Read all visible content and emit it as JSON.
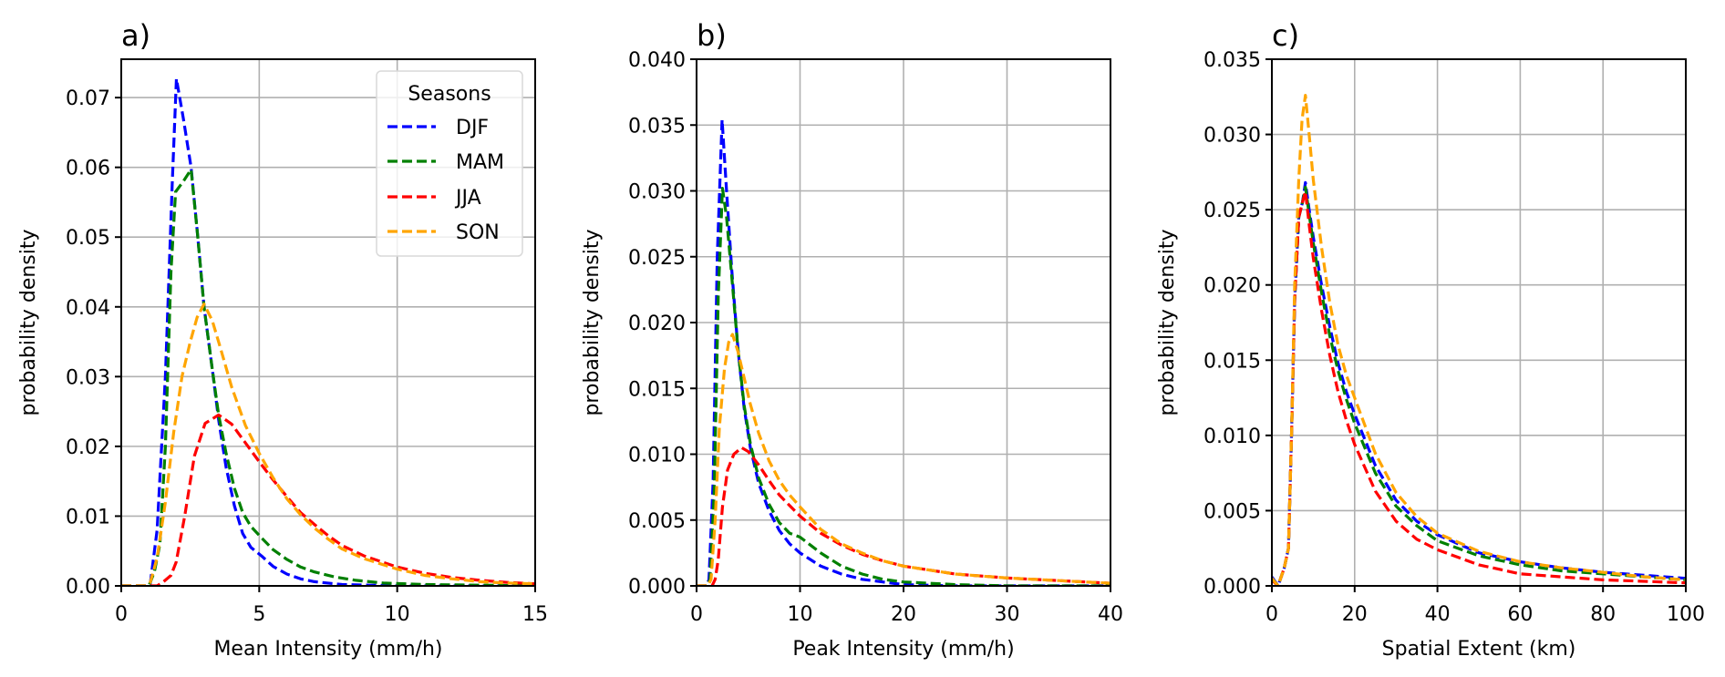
{
  "colors": {
    "DJF": "#0000ff",
    "MAM": "#008000",
    "JJA": "#ff0000",
    "SON": "#ffa500",
    "grid": "#b0b0b0"
  },
  "chart_data": [
    {
      "type": "line",
      "panel": "a)",
      "title": "a)",
      "xlabel": "Mean Intensity (mm/h)",
      "ylabel": "probability density",
      "xlim": [
        0,
        15
      ],
      "ylim": [
        0,
        0.0755
      ],
      "xticks": [
        0,
        5,
        10,
        15
      ],
      "xtick_labels": [
        "0",
        "5",
        "10",
        "15"
      ],
      "yticks": [
        0,
        0.01,
        0.02,
        0.03,
        0.04,
        0.05,
        0.06,
        0.07
      ],
      "ytick_labels": [
        "0.00",
        "0.01",
        "0.02",
        "0.03",
        "0.04",
        "0.05",
        "0.06",
        "0.07"
      ],
      "grid": true,
      "legend": {
        "title": "Seasons",
        "position": "top-right",
        "entries": [
          "DJF",
          "MAM",
          "JJA",
          "SON"
        ]
      },
      "series": [
        {
          "name": "DJF",
          "x": [
            0,
            0.9,
            1.05,
            1.3,
            1.6,
            1.85,
            2.0,
            2.25,
            2.53,
            2.77,
            3.0,
            3.3,
            3.53,
            3.8,
            4.1,
            4.4,
            4.7,
            5.08,
            5.5,
            6.0,
            6.5,
            7.0,
            8.0,
            9.0,
            10.0,
            12.0,
            15.0
          ],
          "y": [
            0,
            0,
            0.0003,
            0.008,
            0.03,
            0.058,
            0.0727,
            0.067,
            0.06,
            0.0502,
            0.04,
            0.031,
            0.0238,
            0.017,
            0.0115,
            0.0075,
            0.0055,
            0.0043,
            0.0028,
            0.0017,
            0.001,
            0.0006,
            0.0002,
            0.0001,
            0.0,
            0.0,
            0.0
          ]
        },
        {
          "name": "MAM",
          "x": [
            0,
            1.0,
            1.2,
            1.4,
            1.6,
            1.8,
            1.97,
            2.25,
            2.53,
            2.77,
            3.0,
            3.3,
            3.53,
            3.8,
            4.1,
            4.4,
            4.7,
            5.08,
            5.5,
            6.0,
            6.5,
            7.0,
            7.7,
            8.5,
            9.5,
            11.0,
            13.0,
            15.0
          ],
          "y": [
            0,
            0,
            0.002,
            0.006,
            0.02,
            0.045,
            0.0565,
            0.058,
            0.0597,
            0.0502,
            0.04,
            0.031,
            0.0245,
            0.019,
            0.014,
            0.0105,
            0.0085,
            0.0069,
            0.0052,
            0.0038,
            0.0027,
            0.002,
            0.0013,
            0.0008,
            0.0004,
            0.0002,
            0.0001,
            0.0
          ]
        },
        {
          "name": "JJA",
          "x": [
            0,
            1.3,
            1.5,
            1.8,
            1.99,
            2.3,
            2.65,
            3.04,
            3.53,
            4.0,
            4.5,
            5.0,
            5.5,
            6.0,
            6.5,
            7.0,
            7.5,
            8.0,
            8.8,
            10.0,
            11.0,
            12.0,
            13.0,
            14.0,
            15.0
          ],
          "y": [
            0,
            0,
            0.0005,
            0.0015,
            0.0034,
            0.01,
            0.0186,
            0.0233,
            0.0245,
            0.0232,
            0.0205,
            0.0178,
            0.0152,
            0.0128,
            0.0105,
            0.0088,
            0.0072,
            0.0058,
            0.0043,
            0.0027,
            0.0018,
            0.0012,
            0.0008,
            0.0005,
            0.0003
          ]
        },
        {
          "name": "SON",
          "x": [
            0,
            0.9,
            1.05,
            1.3,
            1.6,
            1.9,
            2.2,
            2.5,
            2.75,
            3.0,
            3.3,
            3.6,
            4.0,
            4.5,
            5.0,
            5.5,
            6.0,
            6.5,
            7.0,
            7.5,
            8.0,
            8.8,
            10.0,
            11.0,
            12.0,
            13.0,
            14.0,
            15.0
          ],
          "y": [
            0,
            0,
            0.0005,
            0.004,
            0.012,
            0.022,
            0.03,
            0.035,
            0.0385,
            0.0404,
            0.038,
            0.034,
            0.0285,
            0.023,
            0.019,
            0.0155,
            0.0125,
            0.0102,
            0.0083,
            0.0067,
            0.0053,
            0.0039,
            0.0024,
            0.0015,
            0.001,
            0.0006,
            0.0004,
            0.0003
          ]
        }
      ]
    },
    {
      "type": "line",
      "panel": "b)",
      "title": "b)",
      "xlabel": "Peak Intensity (mm/h)",
      "ylabel": "probability density",
      "xlim": [
        0,
        40
      ],
      "ylim": [
        0,
        0.04
      ],
      "xticks": [
        0,
        10,
        20,
        30,
        40
      ],
      "xtick_labels": [
        "0",
        "10",
        "20",
        "30",
        "40"
      ],
      "yticks": [
        0,
        0.005,
        0.01,
        0.015,
        0.02,
        0.025,
        0.03,
        0.035,
        0.04
      ],
      "ytick_labels": [
        "0.000",
        "0.005",
        "0.010",
        "0.015",
        "0.020",
        "0.025",
        "0.030",
        "0.035",
        "0.040"
      ],
      "grid": true,
      "series": [
        {
          "name": "DJF",
          "x": [
            0,
            1.0,
            1.2,
            1.6,
            2.0,
            2.47,
            2.9,
            3.4,
            4.0,
            4.6,
            5.2,
            6.0,
            7.0,
            8.0,
            9.0,
            10.0,
            12.0,
            14.0,
            16.0,
            18.0,
            20.0,
            25.0,
            30.0,
            40.0
          ],
          "y": [
            0,
            0,
            0.0005,
            0.008,
            0.025,
            0.0354,
            0.03,
            0.024,
            0.018,
            0.0135,
            0.0105,
            0.0078,
            0.0057,
            0.0042,
            0.0032,
            0.0025,
            0.0015,
            0.0009,
            0.0005,
            0.0003,
            0.0001,
            0.0,
            0.0,
            0.0
          ]
        },
        {
          "name": "MAM",
          "x": [
            0,
            1.0,
            1.3,
            1.7,
            2.1,
            2.5,
            2.9,
            3.4,
            4.0,
            4.6,
            5.2,
            6.0,
            7.0,
            8.0,
            9.0,
            10.0,
            12.0,
            14.0,
            16.0,
            18.0,
            20.0,
            25.0,
            30.0,
            40.0
          ],
          "y": [
            0,
            0,
            0.0005,
            0.007,
            0.022,
            0.0302,
            0.028,
            0.0235,
            0.018,
            0.0137,
            0.0108,
            0.0082,
            0.0062,
            0.0048,
            0.004,
            0.0037,
            0.0025,
            0.0015,
            0.0009,
            0.0005,
            0.0003,
            0.0001,
            0.0,
            0.0
          ]
        },
        {
          "name": "JJA",
          "x": [
            0,
            1.5,
            1.8,
            2.1,
            2.5,
            3.0,
            3.6,
            4.35,
            5.0,
            6.0,
            7.0,
            8.0,
            9.0,
            10.0,
            12.0,
            14.0,
            16.0,
            18.0,
            20.0,
            25.0,
            30.0,
            35.0,
            40.0
          ],
          "y": [
            0,
            0,
            0.0005,
            0.002,
            0.006,
            0.0088,
            0.01,
            0.0105,
            0.0102,
            0.0092,
            0.008,
            0.0069,
            0.0061,
            0.0053,
            0.004,
            0.0031,
            0.0024,
            0.0019,
            0.0015,
            0.0009,
            0.0006,
            0.0004,
            0.0002
          ]
        },
        {
          "name": "SON",
          "x": [
            0,
            1.1,
            1.4,
            1.8,
            2.2,
            2.7,
            3.1,
            3.47,
            4.0,
            4.6,
            5.2,
            6.0,
            7.0,
            8.0,
            9.0,
            10.0,
            12.0,
            14.0,
            16.0,
            18.0,
            20.0,
            25.0,
            30.0,
            35.0,
            40.0
          ],
          "y": [
            0,
            0,
            0.0005,
            0.005,
            0.012,
            0.0165,
            0.0185,
            0.0191,
            0.0178,
            0.0158,
            0.0138,
            0.0116,
            0.0095,
            0.008,
            0.0069,
            0.006,
            0.0043,
            0.0032,
            0.0025,
            0.0019,
            0.0015,
            0.0009,
            0.0006,
            0.0004,
            0.0002
          ]
        }
      ]
    },
    {
      "type": "line",
      "panel": "c)",
      "title": "c)",
      "xlabel": "Spatial Extent (km)",
      "ylabel": "probability density",
      "xlim": [
        0,
        100
      ],
      "ylim": [
        0,
        0.035
      ],
      "xticks": [
        0,
        20,
        40,
        60,
        80,
        100
      ],
      "xtick_labels": [
        "0",
        "20",
        "40",
        "60",
        "80",
        "100"
      ],
      "yticks": [
        0,
        0.005,
        0.01,
        0.015,
        0.02,
        0.025,
        0.03,
        0.035
      ],
      "ytick_labels": [
        "0.000",
        "0.005",
        "0.010",
        "0.015",
        "0.020",
        "0.025",
        "0.030",
        "0.035"
      ],
      "grid": true,
      "series": [
        {
          "name": "DJF",
          "x": [
            0,
            1.5,
            3.0,
            4.0,
            4.8,
            5.5,
            6.5,
            7.4,
            8.1,
            9.0,
            10.0,
            12.0,
            14.0,
            16.0,
            18.0,
            20.0,
            25.0,
            30.0,
            35.0,
            40.0,
            50.0,
            60.0,
            70.0,
            80.0,
            90.0,
            100.0
          ],
          "y": [
            0.0006,
            0.0,
            0.0012,
            0.0025,
            0.0106,
            0.019,
            0.0245,
            0.0255,
            0.0268,
            0.025,
            0.0232,
            0.02,
            0.0172,
            0.0148,
            0.0129,
            0.0114,
            0.008,
            0.0057,
            0.0043,
            0.0034,
            0.0022,
            0.0016,
            0.0012,
            0.0009,
            0.0007,
            0.0005
          ]
        },
        {
          "name": "MAM",
          "x": [
            0,
            1.5,
            3.0,
            4.0,
            4.8,
            5.5,
            6.5,
            7.4,
            8.1,
            9.0,
            10.0,
            12.0,
            14.0,
            16.0,
            18.0,
            20.0,
            25.0,
            30.0,
            35.0,
            40.0,
            50.0,
            60.0,
            70.0,
            80.0,
            90.0,
            100.0
          ],
          "y": [
            0.0005,
            0.0,
            0.0012,
            0.0025,
            0.0106,
            0.019,
            0.0245,
            0.0255,
            0.0265,
            0.0247,
            0.0228,
            0.0195,
            0.0166,
            0.0143,
            0.0124,
            0.0108,
            0.0075,
            0.0053,
            0.004,
            0.003,
            0.002,
            0.0014,
            0.001,
            0.0008,
            0.0006,
            0.0004
          ]
        },
        {
          "name": "JJA",
          "x": [
            0,
            1.5,
            3.0,
            4.0,
            4.8,
            5.5,
            6.5,
            7.4,
            8.1,
            9.0,
            10.0,
            12.0,
            14.0,
            16.0,
            18.0,
            20.0,
            25.0,
            30.0,
            35.0,
            40.0,
            50.0,
            60.0,
            70.0,
            80.0,
            90.0,
            100.0
          ],
          "y": [
            0.0004,
            0.0,
            0.0012,
            0.0025,
            0.0106,
            0.019,
            0.0245,
            0.0255,
            0.0262,
            0.024,
            0.0218,
            0.0183,
            0.0153,
            0.0129,
            0.011,
            0.0094,
            0.0063,
            0.0043,
            0.0031,
            0.0024,
            0.0014,
            0.0008,
            0.0006,
            0.0004,
            0.0003,
            0.0002
          ]
        },
        {
          "name": "SON",
          "x": [
            0,
            1.5,
            3.0,
            4.0,
            4.8,
            5.5,
            6.5,
            7.3,
            8.1,
            9.0,
            10.0,
            12.0,
            14.0,
            16.0,
            18.0,
            20.0,
            25.0,
            30.0,
            35.0,
            40.0,
            50.0,
            60.0,
            70.0,
            80.0,
            90.0,
            100.0
          ],
          "y": [
            0.0005,
            0.0,
            0.0012,
            0.0025,
            0.0106,
            0.02,
            0.027,
            0.031,
            0.0326,
            0.03,
            0.027,
            0.0225,
            0.0188,
            0.016,
            0.014,
            0.0125,
            0.0088,
            0.0062,
            0.0046,
            0.0035,
            0.0023,
            0.0016,
            0.0012,
            0.0009,
            0.0006,
            0.0004
          ]
        }
      ]
    }
  ]
}
